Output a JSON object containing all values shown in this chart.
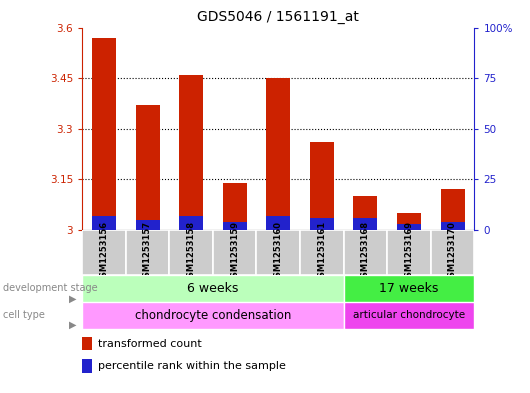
{
  "title": "GDS5046 / 1561191_at",
  "samples": [
    "GSM1253156",
    "GSM1253157",
    "GSM1253158",
    "GSM1253159",
    "GSM1253160",
    "GSM1253161",
    "GSM1253168",
    "GSM1253169",
    "GSM1253170"
  ],
  "transformed_count": [
    3.57,
    3.37,
    3.46,
    3.14,
    3.45,
    3.26,
    3.1,
    3.05,
    3.12
  ],
  "percentile_rank": [
    7,
    5,
    7,
    4,
    7,
    6,
    6,
    3,
    4
  ],
  "base_value": 3.0,
  "ylim_left": [
    3.0,
    3.6
  ],
  "ylim_right": [
    0,
    100
  ],
  "yticks_left": [
    3.0,
    3.15,
    3.3,
    3.45,
    3.6
  ],
  "yticks_left_labels": [
    "3",
    "3.15",
    "3.3",
    "3.45",
    "3.6"
  ],
  "yticks_right": [
    0,
    25,
    50,
    75,
    100
  ],
  "yticks_right_labels": [
    "0",
    "25",
    "50",
    "75",
    "100%"
  ],
  "bar_color_red": "#cc2200",
  "bar_color_blue": "#2222cc",
  "left_axis_color": "#cc2200",
  "right_axis_color": "#2222cc",
  "dev_stage_6weeks_color": "#bbffbb",
  "dev_stage_17weeks_color": "#44ee44",
  "cell_type_chondro_color": "#ff99ff",
  "cell_type_articular_color": "#ee44ee",
  "sample_bg_color": "#cccccc",
  "dev_stage_label": "development stage",
  "cell_type_label": "cell type",
  "group1_label": "6 weeks",
  "group2_label": "17 weeks",
  "cell_type1_label": "chondrocyte condensation",
  "cell_type2_label": "articular chondrocyte",
  "group1_samples": 6,
  "group2_samples": 3,
  "legend_red": "transformed count",
  "legend_blue": "percentile rank within the sample",
  "percentile_scale": 0.6
}
